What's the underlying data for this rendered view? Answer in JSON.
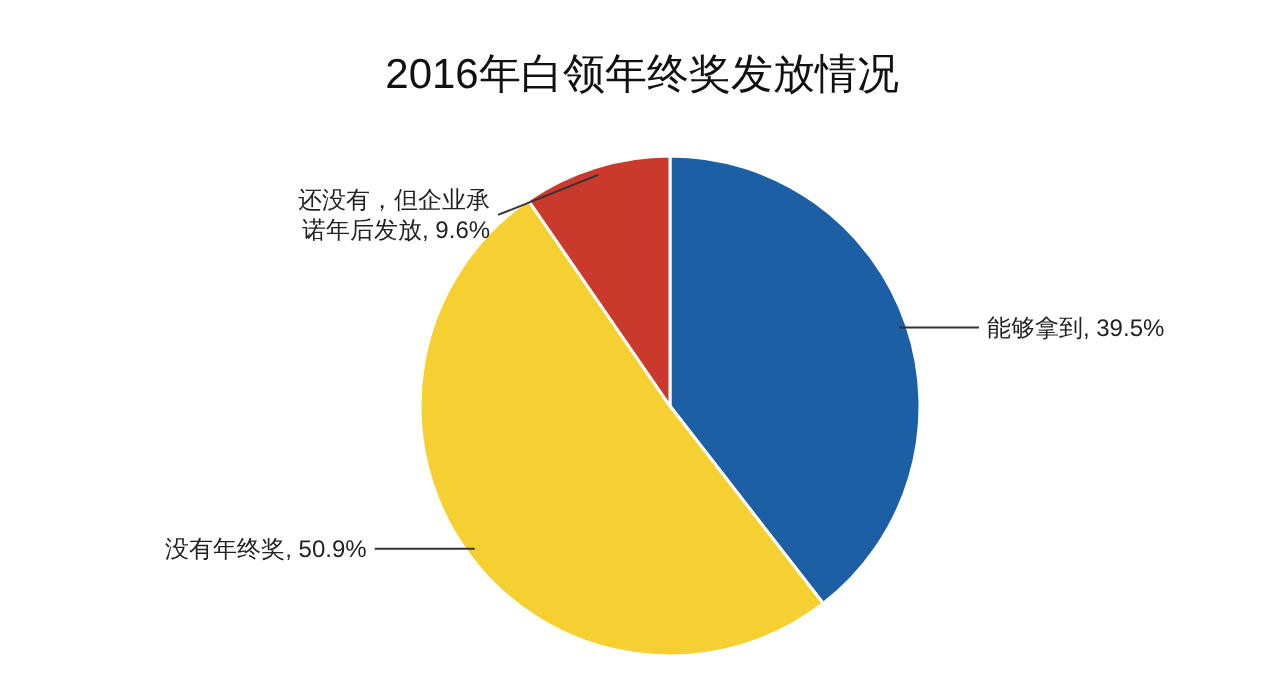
{
  "chart_data": {
    "type": "pie",
    "title": "2016年白领年终奖发放情况",
    "categories": [
      "能够拿到",
      "没有年终奖",
      "还没有，但企业承诺年后发放"
    ],
    "values": [
      39.5,
      50.9,
      9.6
    ],
    "colors": [
      "#1c5fa5",
      "#f6d031",
      "#c9392c"
    ],
    "value_labels": [
      ", 39.5%",
      ", 50.9%",
      ", 9.6%"
    ]
  }
}
